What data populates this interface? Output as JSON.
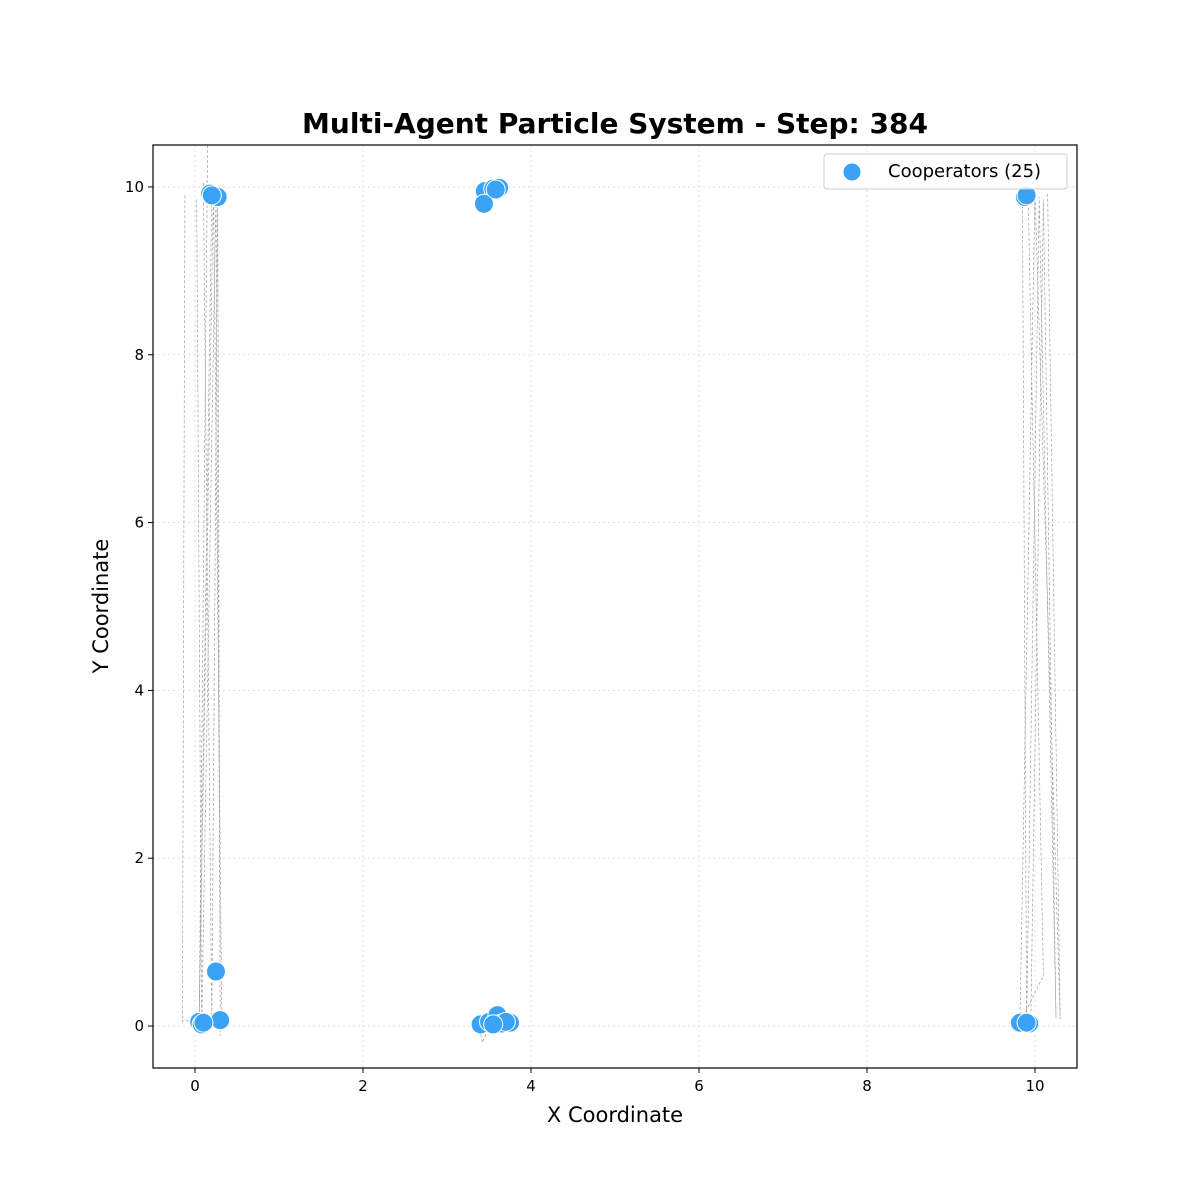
{
  "chart_data": {
    "type": "scatter",
    "title": "Multi-Agent Particle System - Step: 384",
    "xlabel": "X Coordinate",
    "ylabel": "Y Coordinate",
    "xlim": [
      -0.5,
      10.5
    ],
    "ylim": [
      -0.5,
      10.5
    ],
    "xticks": [
      0,
      2,
      4,
      6,
      8,
      10
    ],
    "yticks": [
      0,
      2,
      4,
      6,
      8,
      10
    ],
    "xtick_labels": [
      "0",
      "2",
      "4",
      "6",
      "8",
      "10"
    ],
    "ytick_labels": [
      "0",
      "2",
      "4",
      "6",
      "8",
      "10"
    ],
    "grid": true,
    "legend_position": "top-right",
    "series": [
      {
        "name": "Cooperators (25)",
        "color": "#3ba3f5",
        "points": [
          [
            0.18,
            9.92
          ],
          [
            0.27,
            9.88
          ],
          [
            0.2,
            9.9
          ],
          [
            3.45,
            9.95
          ],
          [
            3.55,
            9.98
          ],
          [
            3.62,
            9.99
          ],
          [
            3.44,
            9.8
          ],
          [
            9.88,
            9.88
          ],
          [
            0.25,
            0.65
          ],
          [
            0.05,
            0.05
          ],
          [
            0.08,
            0.02
          ],
          [
            0.3,
            0.07
          ],
          [
            3.4,
            0.02
          ],
          [
            3.5,
            0.05
          ],
          [
            3.6,
            0.13
          ],
          [
            3.65,
            0.03
          ],
          [
            3.75,
            0.04
          ],
          [
            3.7,
            0.05
          ],
          [
            3.55,
            0.02
          ],
          [
            9.82,
            0.04
          ],
          [
            9.93,
            0.03
          ],
          [
            9.9,
            0.04
          ],
          [
            0.1,
            0.04
          ],
          [
            3.58,
            9.97
          ],
          [
            9.9,
            9.9
          ]
        ]
      }
    ],
    "trails_color": "#9e9e9e"
  }
}
